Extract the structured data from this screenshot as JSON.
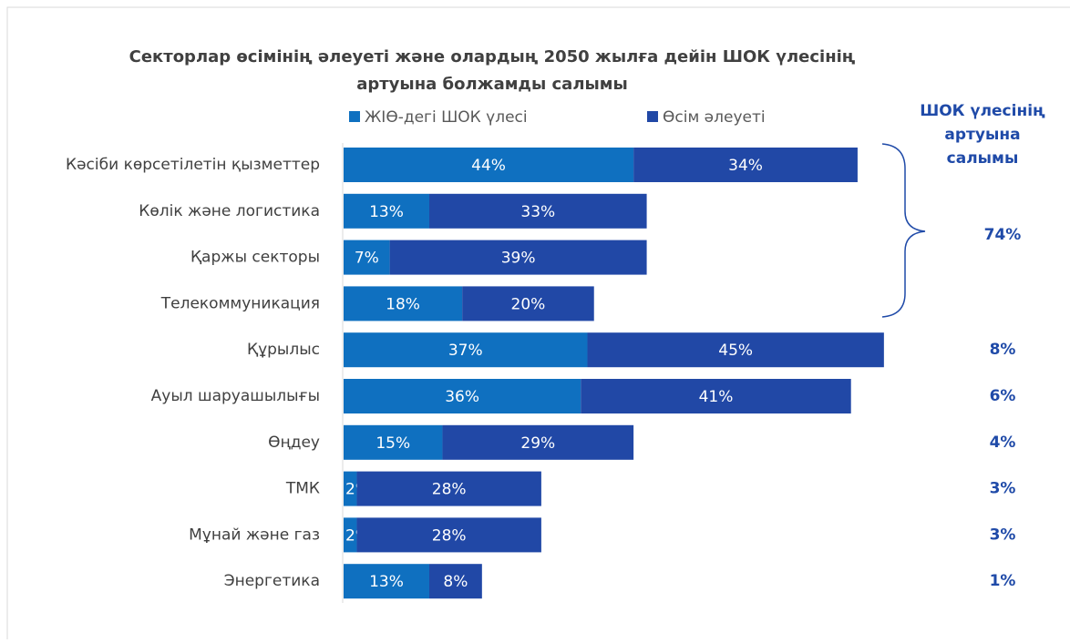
{
  "chart_data": {
    "type": "stacked_bar_horizontal",
    "title": [
      "Секторлар өсімінің әлеуеті және олардың 2050 жылға дейін ШОК үлесінің",
      "артуына болжамды салымы"
    ],
    "categories": [
      "Кәсіби көрсетілетін қызметтер",
      "Көлік және логистика",
      "Қаржы секторы",
      "Телекоммуникация",
      "Құрылыс",
      "Ауыл шаруашылығы",
      "Өңдеу",
      "ТМК",
      "Мұнай және газ",
      "Энергетика"
    ],
    "series": [
      {
        "name": "ЖІӨ-дегі ШОК үлесі",
        "color": "#0f70c0",
        "values": [
          44,
          13,
          7,
          18,
          37,
          36,
          15,
          2,
          2,
          13
        ],
        "value_labels": [
          "44%",
          "13%",
          "7%",
          "18%",
          "37%",
          "36%",
          "15%",
          "2%",
          "2%",
          "13%"
        ]
      },
      {
        "name": "Өсім әлеуеті",
        "color": "#2148a6",
        "values": [
          34,
          33,
          39,
          20,
          45,
          41,
          29,
          28,
          28,
          8
        ],
        "value_labels": [
          "34%",
          "33%",
          "39%",
          "20%",
          "45%",
          "41%",
          "29%",
          "28%",
          "28%",
          "8%"
        ]
      }
    ],
    "contribution_title": [
      "ШОК үлесінің",
      "артуына",
      "салымы"
    ],
    "contribution_labels": [
      "74%",
      "8%",
      "6%",
      "4%",
      "3%",
      "3%",
      "1%"
    ],
    "legend": "top"
  }
}
